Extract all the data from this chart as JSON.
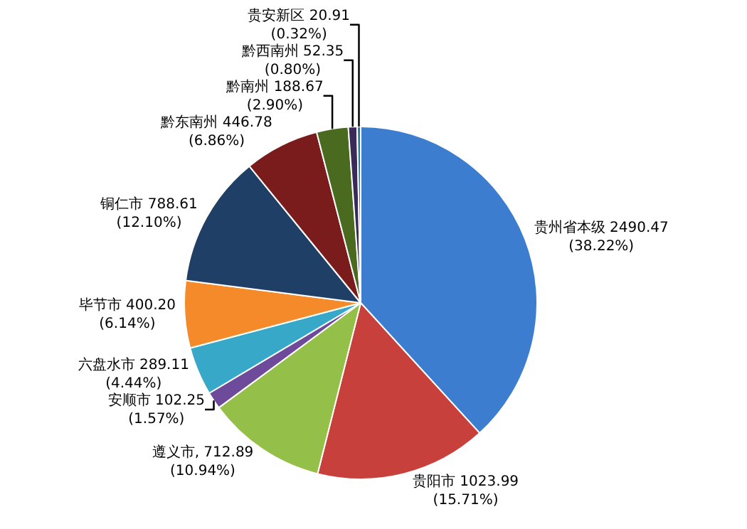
{
  "chart_data": {
    "type": "pie",
    "categories": [
      "贵州省本级",
      "贵阳市",
      "遵义市",
      "安顺市",
      "六盘水市",
      "毕节市",
      "铜仁市",
      "黔东南州",
      "黔南州",
      "黔西南州",
      "贵安新区"
    ],
    "values": [
      2490.47,
      1023.99,
      712.89,
      102.25,
      289.11,
      400.2,
      788.61,
      446.78,
      188.67,
      52.35,
      20.91
    ],
    "colors": [
      "#3c7dd0",
      "#c8403c",
      "#94bf48",
      "#6e4a9a",
      "#38a8c8",
      "#f48a2a",
      "#1f3f66",
      "#7b1c1c",
      "#4a6a20",
      "#3a2a5a",
      "#2a7a90"
    ],
    "value_labels": [
      " 2490.47\n(38.22%)",
      " 1023.99\n(15.71%)",
      ", 712.89\n(10.94%)",
      " 102.25\n(1.57%)",
      " 289.11\n(4.44%)",
      " 400.20\n(6.14%)",
      " 788.61\n(12.10%)",
      " 446.78\n(6.86%)",
      " 188.67\n(2.90%)",
      " 52.35\n(0.80%)",
      " 20.91\n(0.32%)"
    ],
    "legend": false
  }
}
